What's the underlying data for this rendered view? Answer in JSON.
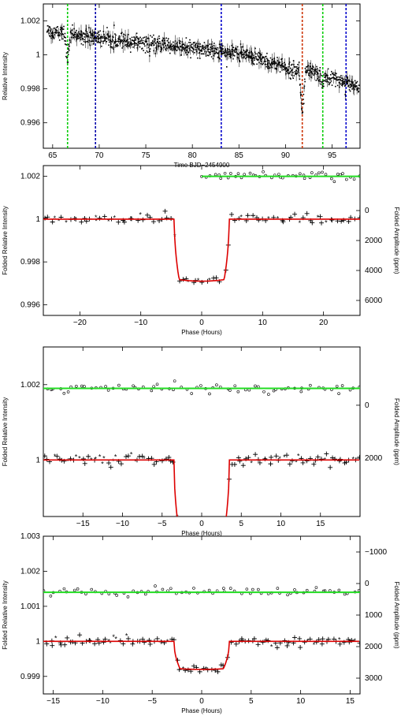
{
  "chart_data": [
    {
      "type": "scatter",
      "xlabel": "Time BJD−2454900",
      "ylabel": "Relative Intensity",
      "xlim": [
        64,
        98
      ],
      "ylim": [
        0.9945,
        1.003
      ],
      "xticks": [
        65,
        70,
        75,
        80,
        85,
        90,
        95
      ],
      "xtick_labels": [
        "65",
        "70",
        "75",
        "80",
        "85",
        "90",
        "95"
      ],
      "yticks": [
        0.996,
        0.998,
        1.0,
        1.002
      ],
      "ytick_labels": [
        "0.996",
        "0.998",
        "1",
        "1.002"
      ],
      "trend": [
        [
          64.5,
          1.0014
        ],
        [
          70,
          1.001
        ],
        [
          75,
          1.0007
        ],
        [
          80,
          1.0004
        ],
        [
          85,
          1.0001
        ],
        [
          90,
          0.9993
        ],
        [
          95,
          0.9987
        ],
        [
          98,
          0.998
        ]
      ],
      "transit_dips": [
        [
          66.6,
          0.9995
        ],
        [
          91.8,
          0.9962
        ],
        [
          94.0,
          0.9982
        ]
      ],
      "vlines": [
        {
          "x": 66.6,
          "color": "#00cc00"
        },
        {
          "x": 69.6,
          "color": "#0000aa"
        },
        {
          "x": 83.1,
          "color": "#0000cc"
        },
        {
          "x": 91.8,
          "color": "#cc3300"
        },
        {
          "x": 94.0,
          "color": "#00cc00"
        },
        {
          "x": 96.5,
          "color": "#0000cc"
        }
      ],
      "grid": false
    },
    {
      "type": "scatter",
      "xlabel": "Phase (Hours)",
      "ylabel": "Folded Relative Intensity",
      "y2label": "Folded Amplitude (ppm)",
      "xlim": [
        -26,
        26
      ],
      "ylim": [
        0.9955,
        1.0025
      ],
      "y2lim": [
        7000,
        -3000
      ],
      "xticks": [
        -20,
        -10,
        0,
        10,
        20
      ],
      "xtick_labels": [
        "−20",
        "−10",
        "0",
        "10",
        "20"
      ],
      "yticks": [
        0.996,
        0.998,
        1.0,
        1.002
      ],
      "ytick_labels": [
        "0.996",
        "0.998",
        "1",
        "1.002"
      ],
      "y2ticks": [
        0,
        2000,
        4000,
        6000
      ],
      "y2tick_labels": [
        "0",
        "2000",
        "4000",
        "6000"
      ],
      "transit": {
        "depth": 0.0029,
        "half_width": 4.5,
        "ingress": 0.8
      },
      "residual_range": [
        0,
        26
      ],
      "residual_level": 1.002
    },
    {
      "type": "scatter",
      "xlabel": "Phase (Hours)",
      "ylabel": "Folded Relative Intensity",
      "y2label": "Folded Amplitude (ppm)",
      "xlim": [
        -20,
        20
      ],
      "ylim": [
        0.9985,
        1.003
      ],
      "y2lim": [
        4200,
        -2200
      ],
      "xticks": [
        -15,
        -10,
        -5,
        0,
        5,
        10,
        15
      ],
      "xtick_labels": [
        "−15",
        "−10",
        "−5",
        "0",
        "5",
        "10",
        "15"
      ],
      "yticks": [
        1.0,
        1.002
      ],
      "ytick_labels": [
        "1",
        "1.002"
      ],
      "y2ticks": [
        0,
        2000
      ],
      "y2tick_labels": [
        "0",
        "2000"
      ],
      "transit": {
        "depth": 0.0022,
        "half_width": 3.5,
        "ingress": 0.8
      },
      "residual_range": [
        -20,
        20
      ],
      "residual_level": 1.0019
    },
    {
      "type": "scatter",
      "xlabel": "Phase (Hours)",
      "ylabel": "Folded Relative Intensity",
      "y2label": "Folded Amplitude (ppm)",
      "xlim": [
        -16,
        16
      ],
      "ylim": [
        0.9985,
        1.003
      ],
      "y2lim": [
        3500,
        -1500
      ],
      "xticks": [
        -15,
        -10,
        -5,
        0,
        5,
        10,
        15
      ],
      "xtick_labels": [
        "−15",
        "−10",
        "−5",
        "0",
        "5",
        "10",
        "15"
      ],
      "yticks": [
        0.999,
        1.0,
        1.001,
        1.002,
        1.003
      ],
      "ytick_labels": [
        "0.999",
        "1",
        "1.001",
        "1.002",
        "1.003"
      ],
      "y2ticks": [
        -1000,
        0,
        1000,
        2000,
        3000
      ],
      "y2tick_labels": [
        "−1000",
        "0",
        "1000",
        "2000",
        "3000"
      ],
      "transit": {
        "depth": 0.0008,
        "half_width": 2.8,
        "ingress": 0.6
      },
      "residual_range": [
        -16,
        16
      ],
      "residual_level": 1.0014
    }
  ]
}
